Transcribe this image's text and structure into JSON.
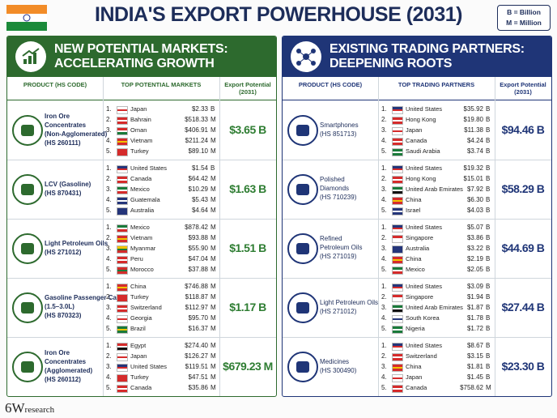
{
  "header": {
    "title": "INDIA'S EXPORT POWERHOUSE (2031)",
    "legend": [
      "B = Billion",
      "M = Million"
    ]
  },
  "panels": [
    {
      "title": [
        "NEW POTENTIAL MARKETS:",
        "ACCELERATING GROWTH"
      ],
      "columns": [
        "PRODUCT (HS CODE)",
        "TOP POTENTIAL MARKETS",
        "Export Potential (2031)"
      ],
      "rows": [
        {
          "product": [
            "Iron Ore",
            "Concentrates",
            "(Non-Agglomerated)",
            "(HS 260111)"
          ],
          "markets": [
            [
              "1.",
              "Japan",
              "$2.33",
              "B"
            ],
            [
              "2.",
              "Bahrain",
              "$518.33",
              "M"
            ],
            [
              "3.",
              "Oman",
              "$406.91",
              "M"
            ],
            [
              "4.",
              "Vietnam",
              "$211.24",
              "M"
            ],
            [
              "5.",
              "Turkey",
              "$89.10",
              "M"
            ]
          ],
          "total": "$3.65 B"
        },
        {
          "product": [
            "LCV (Gasoline)",
            "(HS 870431)"
          ],
          "markets": [
            [
              "1.",
              "United States",
              "$1.54",
              "B"
            ],
            [
              "2.",
              "Canada",
              "$64.42",
              "M"
            ],
            [
              "3.",
              "Mexico",
              "$10.29",
              "M"
            ],
            [
              "4.",
              "Guatemala",
              "$5.43",
              "M"
            ],
            [
              "5.",
              "Australia",
              "$4.64",
              "M"
            ]
          ],
          "total": "$1.63 B"
        },
        {
          "product": [
            "Light Petroleum Oils",
            "(HS 271012)"
          ],
          "markets": [
            [
              "1.",
              "Mexico",
              "$878.42",
              "M"
            ],
            [
              "2.",
              "Vietnam",
              "$93.88",
              "M"
            ],
            [
              "3.",
              "Myanmar",
              "$55.90",
              "M"
            ],
            [
              "4.",
              "Peru",
              "$47.04",
              "M"
            ],
            [
              "5.",
              "Morocco",
              "$37.88",
              "M"
            ]
          ],
          "total": "$1.51 B"
        },
        {
          "product": [
            "Gasoline Passenger Cars",
            "(1.5–3.0L)",
            "(HS 870323)"
          ],
          "markets": [
            [
              "1.",
              "China",
              "$746.88",
              "M"
            ],
            [
              "2.",
              "Turkey",
              "$118.87",
              "M"
            ],
            [
              "3.",
              "Switzerland",
              "$112.97",
              "M"
            ],
            [
              "4.",
              "Georgia",
              "$95.70",
              "M"
            ],
            [
              "5.",
              "Brazil",
              "$16.37",
              "M"
            ]
          ],
          "total": "$1.17 B"
        },
        {
          "product": [
            "Iron Ore",
            "Concentrates",
            "(Agglomerated)",
            "(HS 260112)"
          ],
          "markets": [
            [
              "1.",
              "Egypt",
              "$274.40",
              "M"
            ],
            [
              "2.",
              "Japan",
              "$126.27",
              "M"
            ],
            [
              "3.",
              "United States",
              "$119.51",
              "M"
            ],
            [
              "4.",
              "Turkey",
              "$47.51",
              "M"
            ],
            [
              "5.",
              "Canada",
              "$35.86",
              "M"
            ]
          ],
          "total": "$679.23 M"
        }
      ]
    },
    {
      "title": [
        "EXISTING TRADING PARTNERS:",
        "DEEPENING ROOTS"
      ],
      "columns": [
        "PRODUCT (HS CODE)",
        "TOP TRADING PARTNERS",
        "Export Potential (2031)"
      ],
      "rows": [
        {
          "product": [
            "Smartphones",
            "(HS 851713)"
          ],
          "markets": [
            [
              "1.",
              "United States",
              "$35.92",
              "B"
            ],
            [
              "2.",
              "Hong Kong",
              "$19.80",
              "B"
            ],
            [
              "3.",
              "Japan",
              "$11.38",
              "B"
            ],
            [
              "4.",
              "Canada",
              "$4.24",
              "B"
            ],
            [
              "5.",
              "Saudi Arabia",
              "$3.74",
              "B"
            ]
          ],
          "total": "$94.46 B"
        },
        {
          "product": [
            "Polished",
            "Diamonds",
            "(HS 710239)"
          ],
          "markets": [
            [
              "1.",
              "United States",
              "$19.32",
              "B"
            ],
            [
              "2.",
              "Hong Kong",
              "$15.01",
              "B"
            ],
            [
              "3.",
              "United Arab Emirates",
              "$7.92",
              "B"
            ],
            [
              "4.",
              "China",
              "$6.30",
              "B"
            ],
            [
              "5.",
              "Israel",
              "$4.03",
              "B"
            ]
          ],
          "total": "$58.29 B"
        },
        {
          "product": [
            "Refined",
            "Petroleum Oils",
            "(HS 271019)"
          ],
          "markets": [
            [
              "1.",
              "United States",
              "$5.07",
              "B"
            ],
            [
              "2.",
              "Singapore",
              "$3.86",
              "B"
            ],
            [
              "3.",
              "Australia",
              "$3.22",
              "B"
            ],
            [
              "4.",
              "China",
              "$2.19",
              "B"
            ],
            [
              "5.",
              "Mexico",
              "$2.05",
              "B"
            ]
          ],
          "total": "$44.69 B"
        },
        {
          "product": [
            "Light Petroleum Oils",
            "(HS 271012)"
          ],
          "markets": [
            [
              "1.",
              "United States",
              "$3.09",
              "B"
            ],
            [
              "2.",
              "Singapore",
              "$1.94",
              "B"
            ],
            [
              "3.",
              "United Arab Emirates",
              "$1.87",
              "B"
            ],
            [
              "4.",
              "South Korea",
              "$1.78",
              "B"
            ],
            [
              "5.",
              "Nigeria",
              "$1.72",
              "B"
            ]
          ],
          "total": "$27.44 B"
        },
        {
          "product": [
            "Medicines",
            "(HS 300490)"
          ],
          "markets": [
            [
              "1.",
              "United States",
              "$8.67",
              "B"
            ],
            [
              "2.",
              "Switzerland",
              "$3.15",
              "B"
            ],
            [
              "3.",
              "China",
              "$1.81",
              "B"
            ],
            [
              "4.",
              "Japan",
              "$1.45",
              "B"
            ],
            [
              "5.",
              "Canada",
              "$758.62",
              "M"
            ]
          ],
          "total": "$23.30 B"
        }
      ]
    }
  ],
  "footer": {
    "brand": [
      "6W",
      "research"
    ]
  }
}
